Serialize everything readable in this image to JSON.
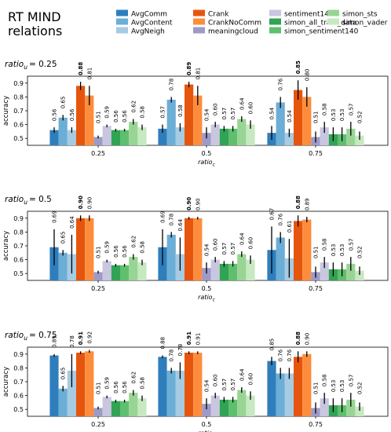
{
  "figure": {
    "title_line1": "RT MIND",
    "title_line2": "relations"
  },
  "legend": [
    {
      "name": "AvgComm",
      "color": "#2f7ebc"
    },
    {
      "name": "AvgContent",
      "color": "#6baed6"
    },
    {
      "name": "AvgNeigh",
      "color": "#a6cbe3"
    },
    {
      "name": "Crank",
      "color": "#e6550d"
    },
    {
      "name": "CrankNoComm",
      "color": "#fd8d3c"
    },
    {
      "name": "meaningcloud",
      "color": "#9e9ac8"
    },
    {
      "name": "sentiment140",
      "color": "#c9c6e0"
    },
    {
      "name": "simon_all_train_data",
      "color": "#31a354"
    },
    {
      "name": "simon_sentiment140",
      "color": "#5fbf6f"
    },
    {
      "name": "simon_sts",
      "color": "#98d594"
    },
    {
      "name": "simon_vader",
      "color": "#c7e9c0"
    }
  ],
  "chart_data": [
    {
      "type": "bar",
      "panel_title_main": "ratio",
      "panel_title_sub": "u",
      "panel_title_value": "= 0.25",
      "xlabel_main": "ratio",
      "xlabel_sub": "c",
      "ylabel": "accuracy",
      "ylim": [
        0.45,
        0.95
      ],
      "yticks": [
        "0.5",
        "0.6",
        "0.7",
        "0.8",
        "0.9"
      ],
      "categories": [
        "0.25",
        "0.5",
        "0.75"
      ],
      "series": [
        {
          "name": "AvgComm",
          "values": [
            0.56,
            0.57,
            0.54
          ],
          "labels": [
            "0.56",
            "0.57",
            "0.54"
          ],
          "err": [
            0.02,
            0.03,
            0.05
          ]
        },
        {
          "name": "AvgContent",
          "values": [
            0.65,
            0.78,
            0.76
          ],
          "labels": [
            "0.65",
            "0.78",
            "0.76"
          ],
          "err": [
            0.02,
            0.02,
            0.04
          ]
        },
        {
          "name": "AvgNeigh",
          "values": [
            0.56,
            0.58,
            0.54
          ],
          "labels": [
            "0.56",
            "0.58",
            "0.54"
          ],
          "err": [
            0.02,
            0.03,
            0.03
          ]
        },
        {
          "name": "Crank",
          "values": [
            0.88,
            0.89,
            0.85
          ],
          "labels": [
            "0.88",
            "0.89",
            "0.85"
          ],
          "err": [
            0.03,
            0.02,
            0.07
          ],
          "bold": true
        },
        {
          "name": "CrankNoComm",
          "values": [
            0.81,
            0.81,
            0.8
          ],
          "labels": [
            "0.81",
            "0.81",
            "0.80"
          ],
          "err": [
            0.07,
            0.07,
            0.07
          ]
        },
        {
          "name": "meaningcloud",
          "values": [
            0.51,
            0.54,
            0.51
          ],
          "labels": [
            "0.51",
            "0.54",
            "0.51"
          ],
          "err": [
            0.01,
            0.04,
            0.04
          ]
        },
        {
          "name": "sentiment140",
          "values": [
            0.59,
            0.6,
            0.58
          ],
          "labels": [
            "0.59",
            "0.60",
            "0.58"
          ],
          "err": [
            0.01,
            0.02,
            0.04
          ]
        },
        {
          "name": "simon_all_train_data",
          "values": [
            0.56,
            0.57,
            0.53
          ],
          "labels": [
            "0.56",
            "0.57",
            "0.53"
          ],
          "err": [
            0.01,
            0.02,
            0.05
          ]
        },
        {
          "name": "simon_sentiment140",
          "values": [
            0.56,
            0.57,
            0.53
          ],
          "labels": [
            "0.56",
            "0.57",
            "0.53"
          ],
          "err": [
            0.01,
            0.02,
            0.05
          ]
        },
        {
          "name": "simon_sts",
          "values": [
            0.62,
            0.64,
            0.57
          ],
          "labels": [
            "0.62",
            "0.64",
            "0.57"
          ],
          "err": [
            0.02,
            0.02,
            0.05
          ]
        },
        {
          "name": "simon_vader",
          "values": [
            0.58,
            0.6,
            0.52
          ],
          "labels": [
            "0.58",
            "0.60",
            "0.52"
          ],
          "err": [
            0.02,
            0.03,
            0.03
          ]
        }
      ]
    },
    {
      "type": "bar",
      "panel_title_main": "ratio",
      "panel_title_sub": "u",
      "panel_title_value": "= 0.5",
      "xlabel_main": "ratio",
      "xlabel_sub": "c",
      "ylabel": "accuracy",
      "ylim": [
        0.45,
        0.95
      ],
      "yticks": [
        "0.5",
        "0.6",
        "0.7",
        "0.8",
        "0.9"
      ],
      "categories": [
        "0.25",
        "0.5",
        "0.75"
      ],
      "series": [
        {
          "name": "AvgComm",
          "values": [
            0.69,
            0.69,
            0.67
          ],
          "labels": [
            "0.69",
            "0.69",
            "0.67"
          ],
          "err": [
            0.13,
            0.13,
            0.17
          ]
        },
        {
          "name": "AvgContent",
          "values": [
            0.65,
            0.78,
            0.76
          ],
          "labels": [
            "0.65",
            "0.78",
            "0.76"
          ],
          "err": [
            0.02,
            0.02,
            0.04
          ]
        },
        {
          "name": "AvgNeigh",
          "values": [
            0.64,
            0.64,
            0.61
          ],
          "labels": [
            "0.64",
            "0.64",
            "0.61"
          ],
          "err": [
            0.14,
            0.12,
            0.14
          ]
        },
        {
          "name": "Crank",
          "values": [
            0.9,
            0.9,
            0.88
          ],
          "labels": [
            "0.90",
            "0.90",
            "0.88"
          ],
          "err": [
            0.02,
            0.01,
            0.04
          ],
          "bold": true
        },
        {
          "name": "CrankNoComm",
          "values": [
            0.9,
            0.9,
            0.89
          ],
          "labels": [
            "0.90",
            "0.90",
            "0.89"
          ],
          "err": [
            0.02,
            0.01,
            0.02
          ]
        },
        {
          "name": "meaningcloud",
          "values": [
            0.51,
            0.54,
            0.51
          ],
          "labels": [
            "0.51",
            "0.54",
            "0.51"
          ],
          "err": [
            0.01,
            0.04,
            0.04
          ]
        },
        {
          "name": "sentiment140",
          "values": [
            0.59,
            0.6,
            0.58
          ],
          "labels": [
            "0.59",
            "0.60",
            "0.58"
          ],
          "err": [
            0.01,
            0.02,
            0.04
          ]
        },
        {
          "name": "simon_all_train_data",
          "values": [
            0.56,
            0.57,
            0.53
          ],
          "labels": [
            "0.56",
            "0.57",
            "0.53"
          ],
          "err": [
            0.01,
            0.02,
            0.05
          ]
        },
        {
          "name": "simon_sentiment140",
          "values": [
            0.56,
            0.57,
            0.53
          ],
          "labels": [
            "0.56",
            "0.57",
            "0.53"
          ],
          "err": [
            0.01,
            0.02,
            0.05
          ]
        },
        {
          "name": "simon_sts",
          "values": [
            0.62,
            0.64,
            0.57
          ],
          "labels": [
            "0.62",
            "0.64",
            "0.57"
          ],
          "err": [
            0.02,
            0.02,
            0.05
          ]
        },
        {
          "name": "simon_vader",
          "values": [
            0.58,
            0.6,
            0.52
          ],
          "labels": [
            "0.58",
            "0.60",
            "0.52"
          ],
          "err": [
            0.02,
            0.03,
            0.03
          ]
        }
      ]
    },
    {
      "type": "bar",
      "panel_title_main": "ratio",
      "panel_title_sub": "u",
      "panel_title_value": "= 0.75",
      "xlabel_main": "ratio",
      "xlabel_sub": "c",
      "ylabel": "accuracy",
      "ylim": [
        0.45,
        0.95
      ],
      "yticks": [
        "0.5",
        "0.6",
        "0.7",
        "0.8",
        "0.9"
      ],
      "categories": [
        "0.25",
        "0.5",
        "0.75"
      ],
      "series": [
        {
          "name": "AvgComm",
          "values": [
            0.89,
            0.88,
            0.85
          ],
          "labels": [
            "0.89",
            "0.88",
            "0.85"
          ],
          "err": [
            0.01,
            0.01,
            0.03
          ]
        },
        {
          "name": "AvgContent",
          "values": [
            0.65,
            0.78,
            0.76
          ],
          "labels": [
            "0.65",
            "0.78",
            "0.76"
          ],
          "err": [
            0.02,
            0.02,
            0.04
          ]
        },
        {
          "name": "AvgNeigh",
          "values": [
            0.78,
            0.78,
            0.76
          ],
          "labels": [
            "0.78",
            "0.78",
            "0.76"
          ],
          "err": [
            0.12,
            0.06,
            0.04
          ]
        },
        {
          "name": "Crank",
          "values": [
            0.91,
            0.91,
            0.88
          ],
          "labels": [
            "0.91",
            "0.91",
            "0.88"
          ],
          "err": [
            0.01,
            0.01,
            0.04
          ],
          "bold": true
        },
        {
          "name": "CrankNoComm",
          "values": [
            0.92,
            0.91,
            0.9
          ],
          "labels": [
            "0.92",
            "0.91",
            "0.90"
          ],
          "err": [
            0.01,
            0.01,
            0.02
          ]
        },
        {
          "name": "meaningcloud",
          "values": [
            0.51,
            0.54,
            0.51
          ],
          "labels": [
            "0.51",
            "0.54",
            "0.51"
          ],
          "err": [
            0.01,
            0.04,
            0.04
          ]
        },
        {
          "name": "sentiment140",
          "values": [
            0.59,
            0.6,
            0.58
          ],
          "labels": [
            "0.59",
            "0.60",
            "0.58"
          ],
          "err": [
            0.01,
            0.02,
            0.04
          ]
        },
        {
          "name": "simon_all_train_data",
          "values": [
            0.56,
            0.57,
            0.53
          ],
          "labels": [
            "0.56",
            "0.57",
            "0.53"
          ],
          "err": [
            0.01,
            0.02,
            0.05
          ]
        },
        {
          "name": "simon_sentiment140",
          "values": [
            0.56,
            0.57,
            0.53
          ],
          "labels": [
            "0.56",
            "0.57",
            "0.53"
          ],
          "err": [
            0.01,
            0.02,
            0.05
          ]
        },
        {
          "name": "simon_sts",
          "values": [
            0.62,
            0.64,
            0.57
          ],
          "labels": [
            "0.62",
            "0.64",
            "0.57"
          ],
          "err": [
            0.02,
            0.02,
            0.05
          ]
        },
        {
          "name": "simon_vader",
          "values": [
            0.58,
            0.6,
            0.52
          ],
          "labels": [
            "0.58",
            "0.60",
            "0.52"
          ],
          "err": [
            0.02,
            0.03,
            0.03
          ]
        }
      ]
    }
  ]
}
